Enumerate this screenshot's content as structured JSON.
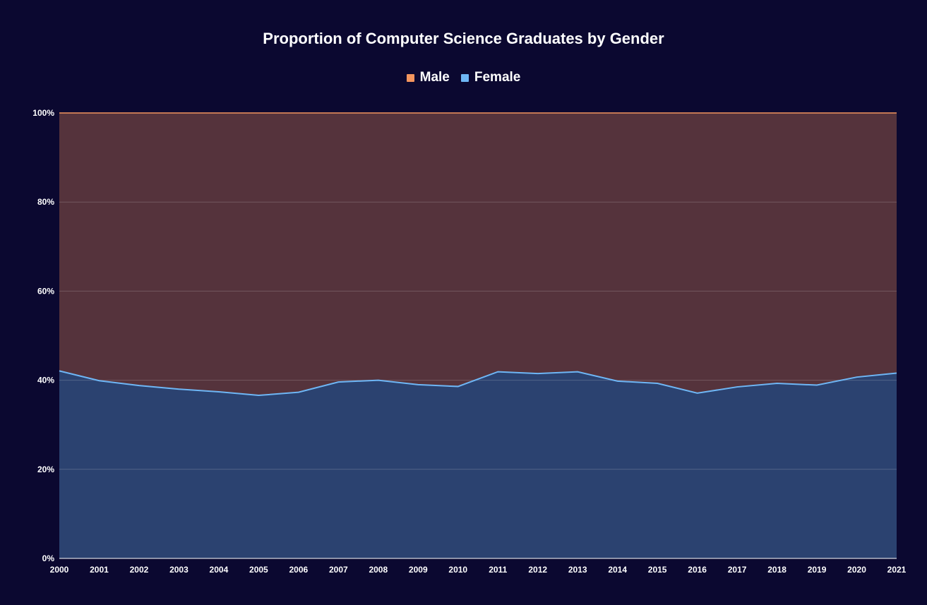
{
  "chart_data": {
    "type": "area",
    "stacked": "percent",
    "title": "Proportion of Computer Science Graduates by Gender",
    "xlabel": "",
    "ylabel": "",
    "ylim": [
      0,
      100
    ],
    "yticks": [
      "0%",
      "20%",
      "40%",
      "60%",
      "80%",
      "100%"
    ],
    "grid": true,
    "legend_position": "top-center",
    "categories": [
      "2000",
      "2001",
      "2002",
      "2003",
      "2004",
      "2005",
      "2006",
      "2007",
      "2008",
      "2009",
      "2010",
      "2011",
      "2012",
      "2013",
      "2014",
      "2015",
      "2016",
      "2017",
      "2018",
      "2019",
      "2020",
      "2021"
    ],
    "series": [
      {
        "name": "Male",
        "color": "#f4955e",
        "fill": "#55333c",
        "values": [
          57.9,
          60.1,
          61.2,
          62.0,
          62.6,
          63.4,
          62.7,
          60.4,
          60.0,
          61.0,
          61.4,
          58.1,
          58.5,
          58.1,
          60.2,
          60.7,
          62.9,
          61.5,
          60.7,
          61.1,
          59.3,
          58.4
        ]
      },
      {
        "name": "Female",
        "color": "#6eb6f5",
        "fill": "#2b4270",
        "values": [
          42.1,
          39.9,
          38.8,
          38.0,
          37.4,
          36.6,
          37.3,
          39.6,
          40.0,
          39.0,
          38.6,
          41.9,
          41.5,
          41.9,
          39.8,
          39.3,
          37.1,
          38.5,
          39.3,
          38.9,
          40.7,
          41.6
        ]
      }
    ]
  }
}
